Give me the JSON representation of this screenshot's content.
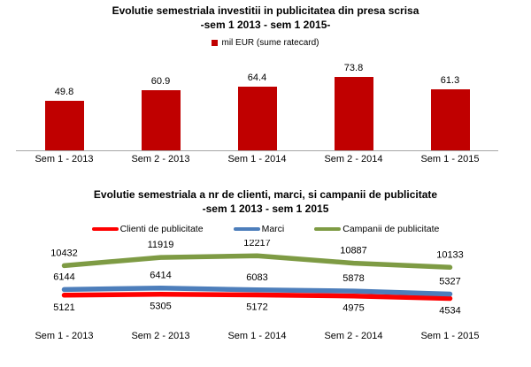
{
  "colors": {
    "bar_red": "#C00000",
    "axis_gray": "#A6A6A6",
    "text": "#000000"
  },
  "chart_data": [
    {
      "type": "bar",
      "title_line1": "Evolutie semestriala investitii in publicitatea din presa scrisa",
      "title_line2": "-sem 1 2013 - sem 1 2015-",
      "legend_label": "mil EUR (sume ratecard)",
      "legend_color": "#C00000",
      "legend_position": "top",
      "categories": [
        "Sem 1 - 2013",
        "Sem 2 - 2013",
        "Sem 1 - 2014",
        "Sem 2 - 2014",
        "Sem 1 - 2015"
      ],
      "values": [
        49.8,
        60.9,
        64.4,
        73.8,
        61.3
      ],
      "ylabel": "mil EUR",
      "ylim": [
        0,
        100
      ],
      "grid": false,
      "data_labels": true,
      "axis_line": true
    },
    {
      "type": "line",
      "title_line1": "Evolutie semestriala a nr de clienti, marci, si campanii de publicitate",
      "title_line2": "-sem 1 2013 - sem 1 2015",
      "legend_position": "top",
      "categories": [
        "Sem 1 - 2013",
        "Sem 2 - 2013",
        "Sem 1 - 2014",
        "Sem 2 - 2014",
        "Sem 1 - 2015"
      ],
      "series": [
        {
          "name": "Clienti de publicitate",
          "color": "#FF0000",
          "values": [
            5121,
            5305,
            5172,
            4975,
            4534
          ],
          "label_position": "below"
        },
        {
          "name": "Marci",
          "color": "#4D7EBB",
          "values": [
            6144,
            6414,
            6083,
            5878,
            5327
          ],
          "label_position": "above"
        },
        {
          "name": "Campanii de publicitate",
          "color": "#7E9B44",
          "values": [
            10432,
            11919,
            12217,
            10887,
            10133
          ],
          "label_position": "above"
        }
      ],
      "ylim": [
        0,
        14000
      ],
      "grid": false,
      "data_labels": true,
      "axis_line": false
    }
  ]
}
